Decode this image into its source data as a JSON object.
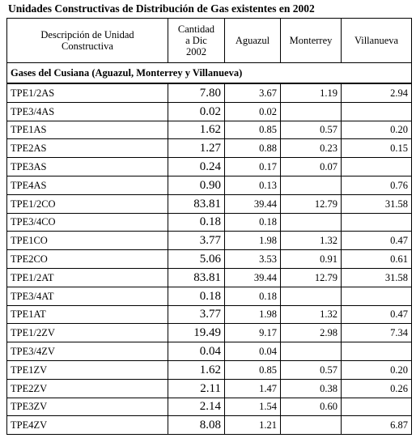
{
  "title": "Unidades Constructivas de Distribución  de Gas existentes en 2002",
  "table": {
    "header": [
      "Descripción de Unidad Constructiva",
      "Cantidad a Dic 2002",
      "Aguazul",
      "Monterrey",
      "Villanueva"
    ],
    "section": "Gases del Cusiana (Aguazul, Monterrey y Villanueva)",
    "rows": [
      [
        "TPE1/2AS",
        "7.80",
        "3.67",
        "1.19",
        "2.94"
      ],
      [
        "TPE3/4AS",
        "0.02",
        "0.02",
        null,
        null
      ],
      [
        "TPE1AS",
        "1.62",
        "0.85",
        "0.57",
        "0.20"
      ],
      [
        "TPE2AS",
        "1.27",
        "0.88",
        "0.23",
        "0.15"
      ],
      [
        "TPE3AS",
        "0.24",
        "0.17",
        "0.07",
        null
      ],
      [
        "TPE4AS",
        "0.90",
        "0.13",
        null,
        "0.76"
      ],
      [
        "TPE1/2CO",
        "83.81",
        "39.44",
        "12.79",
        "31.58"
      ],
      [
        "TPE3/4CO",
        "0.18",
        "0.18",
        null,
        null
      ],
      [
        "TPE1CO",
        "3.77",
        "1.98",
        "1.32",
        "0.47"
      ],
      [
        "TPE2CO",
        "5.06",
        "3.53",
        "0.91",
        "0.61"
      ],
      [
        "TPE1/2AT",
        "83.81",
        "39.44",
        "12.79",
        "31.58"
      ],
      [
        "TPE3/4AT",
        "0.18",
        "0.18",
        null,
        null
      ],
      [
        "TPE1AT",
        "3.77",
        "1.98",
        "1.32",
        "0.47"
      ],
      [
        "TPE1/2ZV",
        "19.49",
        "9.17",
        "2.98",
        "7.34"
      ],
      [
        "TPE3/4ZV",
        "0.04",
        "0.04",
        null,
        null
      ],
      [
        "TPE1ZV",
        "1.62",
        "0.85",
        "0.57",
        "0.20"
      ],
      [
        "TPE2ZV",
        "2.11",
        "1.47",
        "0.38",
        "0.26"
      ],
      [
        "TPE3ZV",
        "2.14",
        "1.54",
        "0.60",
        null
      ],
      [
        "TPE4ZV",
        "8.08",
        "1.21",
        null,
        "6.87"
      ]
    ]
  }
}
